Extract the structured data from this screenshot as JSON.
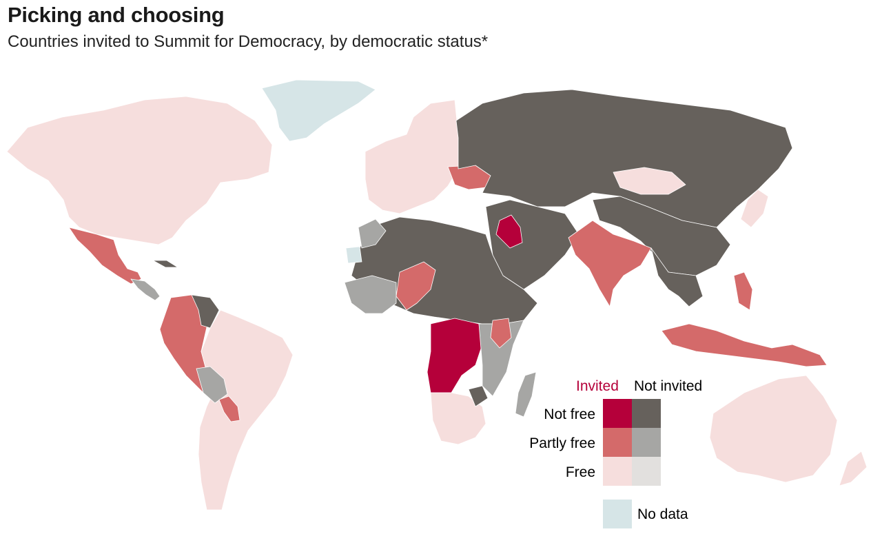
{
  "title": "Picking and choosing",
  "subtitle": "Countries invited to Summit for Democracy, by democratic status*",
  "colors": {
    "invited_not_free": "#b5003a",
    "invited_partly_free": "#d46a6a",
    "invited_free": "#f6dedd",
    "not_invited_not_free": "#66615c",
    "not_invited_partly_free": "#a6a6a4",
    "not_invited_free": "#e2e0de",
    "no_data": "#d6e5e7",
    "border": "#ffffff"
  },
  "legend": {
    "col_invited": "Invited",
    "col_not_invited": "Not invited",
    "row_not_free": "Not free",
    "row_partly_free": "Partly free",
    "row_free": "Free",
    "no_data": "No data",
    "invited_color": "#b5003a"
  }
}
